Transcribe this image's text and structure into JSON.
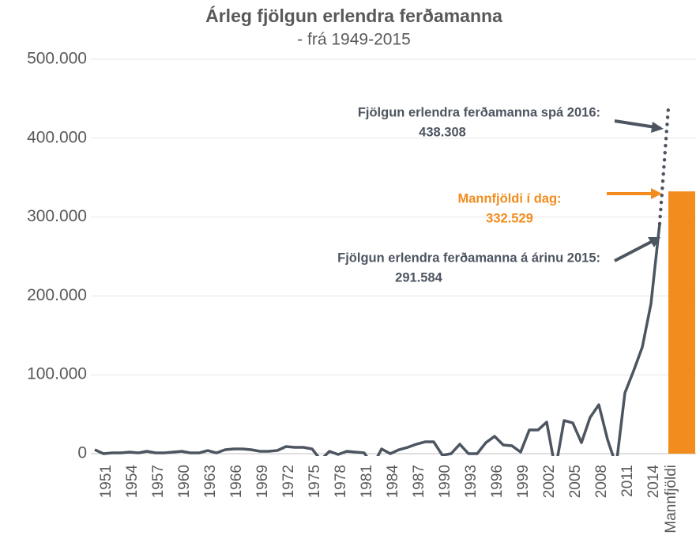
{
  "chart_data": {
    "type": "line",
    "title": "Árleg fjölgun erlendra ferðamanna",
    "subtitle": "- frá 1949-2015",
    "categories": [
      null,
      "1951",
      null,
      null,
      "1954",
      null,
      null,
      "1957",
      null,
      null,
      "1960",
      null,
      null,
      "1963",
      null,
      null,
      "1966",
      null,
      null,
      "1969",
      null,
      null,
      "1972",
      null,
      null,
      "1975",
      null,
      null,
      "1978",
      null,
      null,
      "1981",
      null,
      null,
      "1984",
      null,
      null,
      "1987",
      null,
      null,
      "1990",
      null,
      null,
      "1993",
      null,
      null,
      "1996",
      null,
      null,
      "1999",
      null,
      null,
      "2002",
      null,
      null,
      "2005",
      null,
      null,
      "2008",
      null,
      null,
      "2011",
      null,
      null,
      "2014",
      null,
      "Mannfjöldi"
    ],
    "series": [
      {
        "name": null,
        "kind": "line",
        "color": "#4d5561",
        "values": [
          5000,
          0,
          1000,
          1000,
          2000,
          1000,
          3000,
          1000,
          1000,
          2000,
          3000,
          1000,
          1000,
          4000,
          1000,
          5000,
          6000,
          6000,
          5000,
          3000,
          3000,
          4000,
          9000,
          8000,
          8000,
          6000,
          -8000,
          3000,
          -1000,
          3000,
          2000,
          1000,
          -15000,
          6000,
          0,
          5000,
          8000,
          12000,
          15000,
          15000,
          -2000,
          0,
          12000,
          0,
          0,
          14000,
          22000,
          11000,
          10000,
          2000,
          30000,
          30000,
          40000,
          -20000,
          42000,
          39000,
          14000,
          46000,
          62000,
          18000,
          -15000,
          77000,
          105000,
          135000,
          190000,
          291584,
          null
        ]
      },
      {
        "name": null,
        "kind": "dotted",
        "color": "#4d5561",
        "values": [
          null,
          null,
          null,
          null,
          null,
          null,
          null,
          null,
          null,
          null,
          null,
          null,
          null,
          null,
          null,
          null,
          null,
          null,
          null,
          null,
          null,
          null,
          null,
          null,
          null,
          null,
          null,
          null,
          null,
          null,
          null,
          null,
          null,
          null,
          null,
          null,
          null,
          null,
          null,
          null,
          null,
          null,
          null,
          null,
          null,
          null,
          null,
          null,
          null,
          null,
          null,
          null,
          null,
          null,
          null,
          null,
          null,
          null,
          null,
          null,
          null,
          null,
          null,
          null,
          null,
          291584,
          438308
        ]
      },
      {
        "name": null,
        "kind": "bar",
        "color": "#f28c1e",
        "values": [
          null,
          null,
          null,
          null,
          null,
          null,
          null,
          null,
          null,
          null,
          null,
          null,
          null,
          null,
          null,
          null,
          null,
          null,
          null,
          null,
          null,
          null,
          null,
          null,
          null,
          null,
          null,
          null,
          null,
          null,
          null,
          null,
          null,
          null,
          null,
          null,
          null,
          null,
          null,
          null,
          null,
          null,
          null,
          null,
          null,
          null,
          null,
          null,
          null,
          null,
          null,
          null,
          null,
          null,
          null,
          null,
          null,
          null,
          null,
          null,
          null,
          null,
          null,
          null,
          null,
          null,
          332529
        ]
      }
    ],
    "ylim": [
      0,
      500000
    ],
    "yticks": [
      0,
      {
        "value": 100000,
        "label": "100.000"
      },
      {
        "value": 200000,
        "label": "200.000"
      },
      {
        "value": 300000,
        "label": "300.000"
      },
      {
        "value": 400000,
        "label": "400.000"
      },
      {
        "value": 500000,
        "label": "500.000"
      }
    ],
    "grid": true,
    "annotations": [
      {
        "text": "Fjölgun erlendra ferðamanna spá 2016:",
        "value_label": "438.308",
        "color": "#4d5561"
      },
      {
        "text": "Mannfjöldi  í dag:",
        "value_label": "332.529",
        "color": "#f28c1e"
      },
      {
        "text": "Fjölgun erlendra ferðamanna á árinu 2015:",
        "value_label": "291.584",
        "color": "#4d5561"
      }
    ]
  }
}
